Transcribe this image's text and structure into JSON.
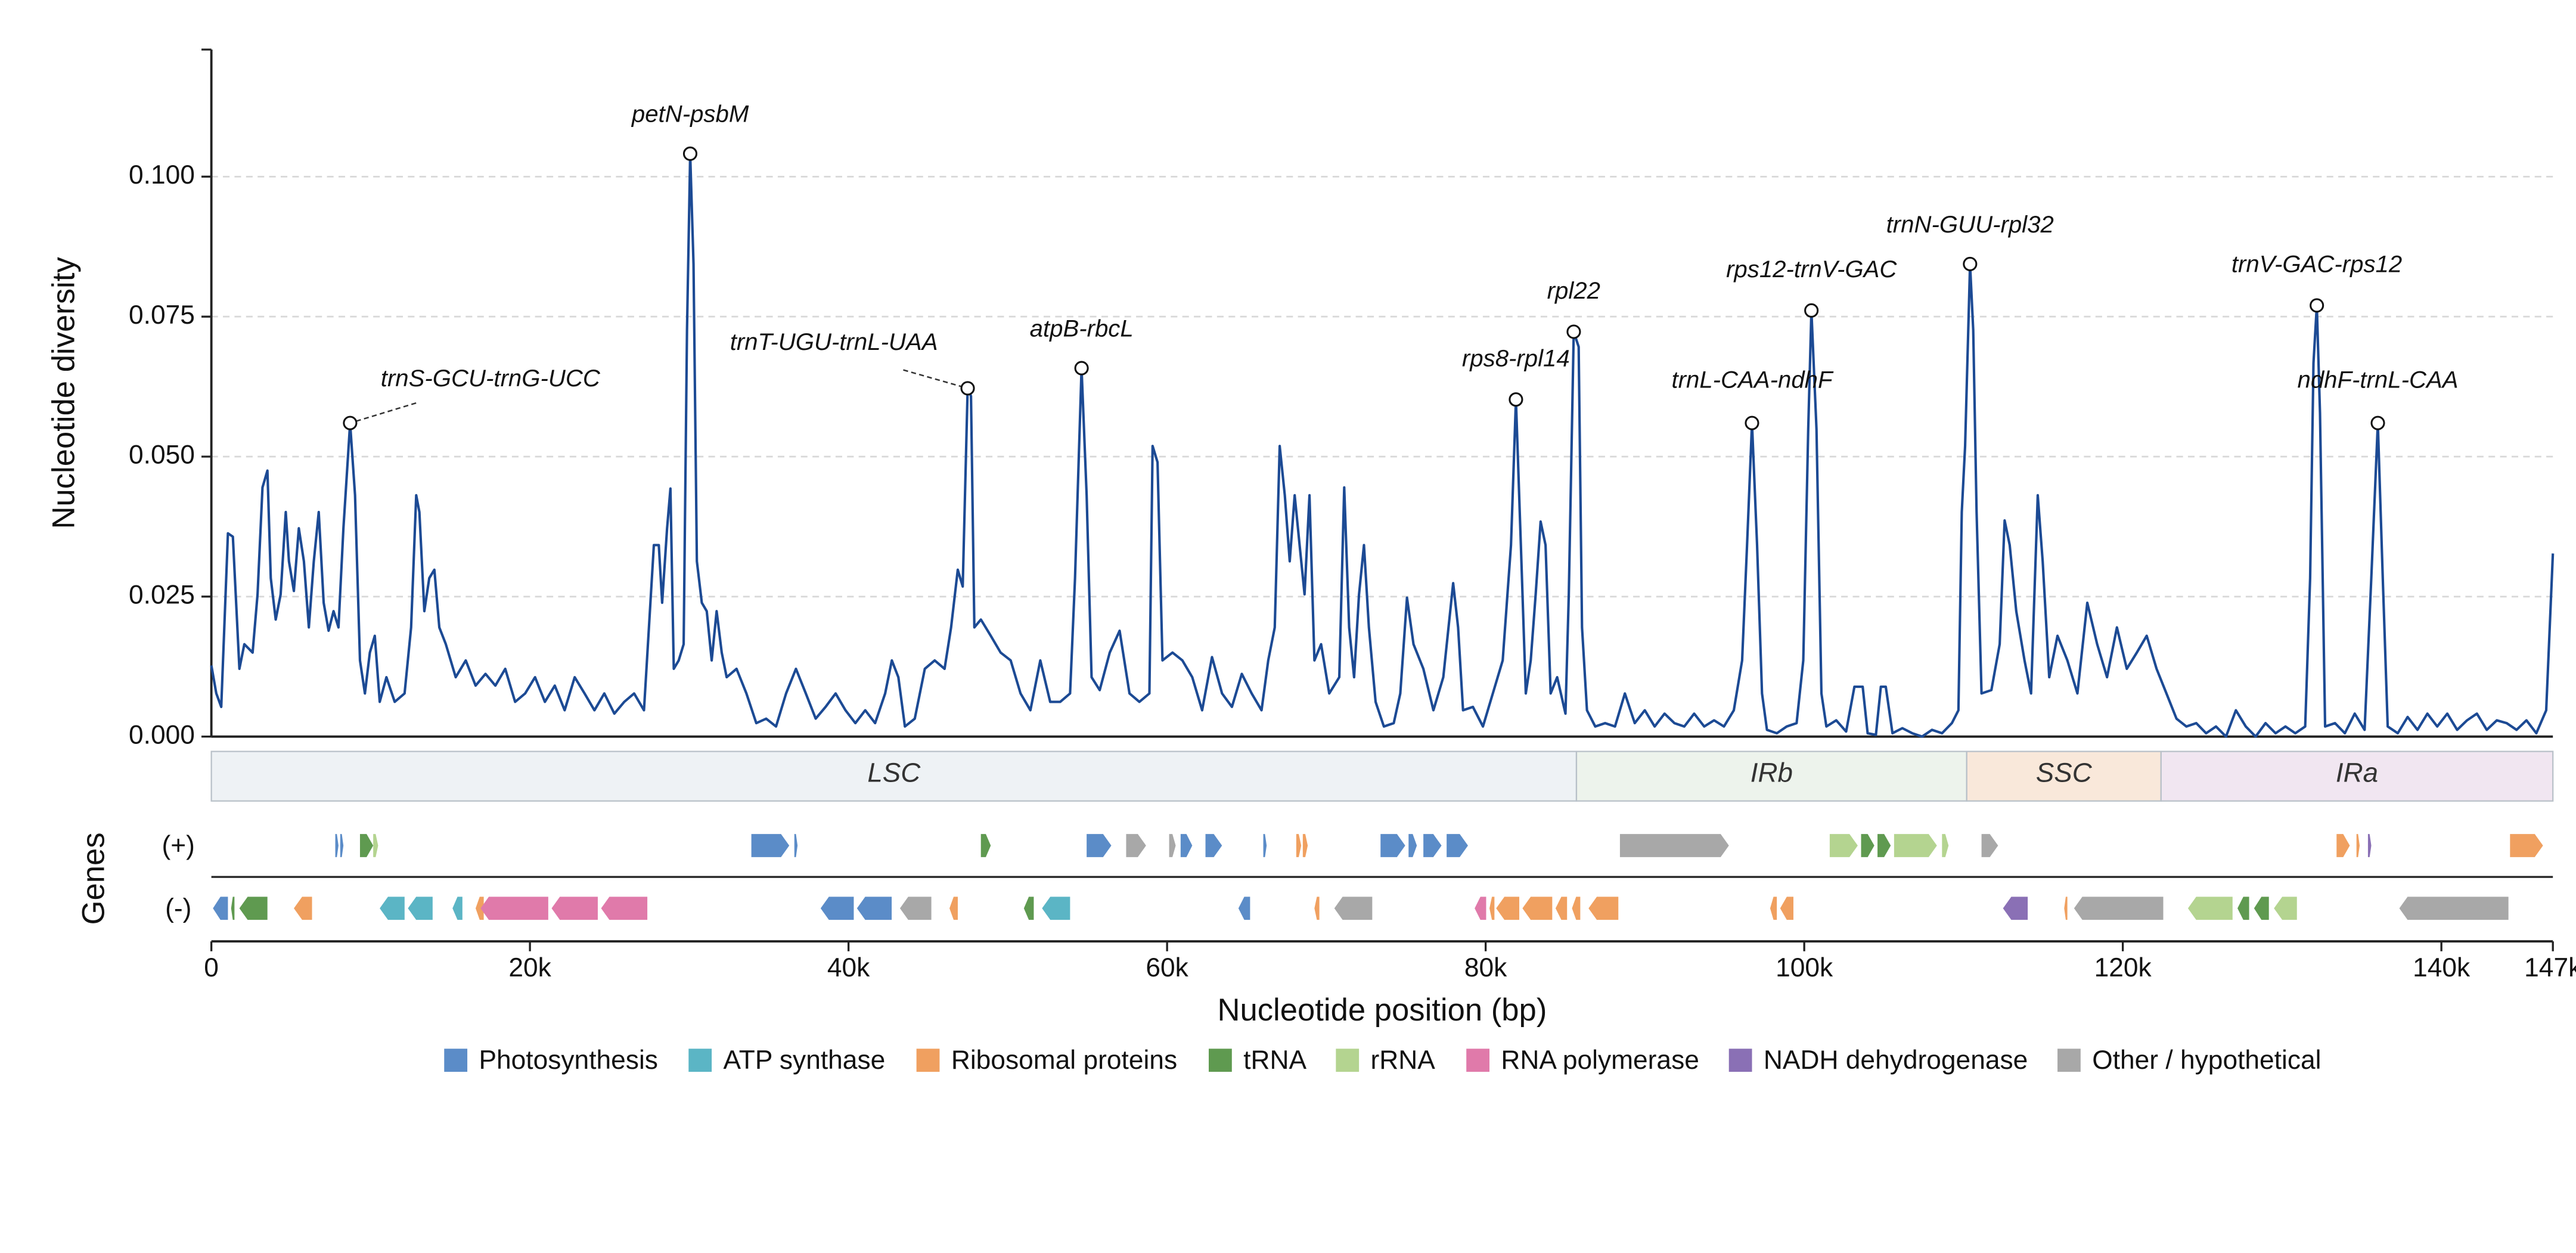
{
  "chart_data": {
    "type": "line",
    "xlabel": "Nucleotide position (bp)",
    "ylabel": "Nucleotide diversity",
    "xlim": [
      0,
      147000
    ],
    "ylim": [
      0,
      0.1227
    ],
    "xticks": [
      0,
      {
        "value": 20000,
        "label": "20k"
      },
      {
        "value": 40000,
        "label": "40k"
      },
      {
        "value": 60000,
        "label": "60k"
      },
      {
        "value": 80000,
        "label": "80k"
      },
      {
        "value": 100000,
        "label": "100k"
      },
      {
        "value": 120000,
        "label": "120k"
      },
      {
        "value": 140000,
        "label": "140k"
      },
      {
        "value": 147000,
        "label": "147k"
      }
    ],
    "yticks": [
      {
        "value": 0,
        "label": "0.000"
      },
      {
        "value": 0.025,
        "label": "0.025"
      },
      {
        "value": 0.05,
        "label": "0.050"
      },
      {
        "value": 0.075,
        "label": "0.075"
      },
      {
        "value": 0.1,
        "label": "0.100"
      }
    ],
    "grid": true,
    "series": [
      {
        "color": "#1c4a94",
        "x": [
          0,
          310,
          620,
          1040,
          1350,
          1760,
          2070,
          2590,
          2900,
          3210,
          3520,
          3730,
          4040,
          4350,
          4670,
          4870,
          5180,
          5490,
          5810,
          6120,
          6430,
          6740,
          7050,
          7360,
          7670,
          7980,
          8290,
          8710,
          9020,
          9330,
          9640,
          9950,
          10260,
          10570,
          10990,
          11510,
          12130,
          12540,
          12860,
          13060,
          13370,
          13680,
          14000,
          14310,
          14720,
          15340,
          15970,
          16590,
          17210,
          17830,
          18450,
          19070,
          19700,
          20320,
          20940,
          21560,
          22180,
          22810,
          23430,
          24050,
          24670,
          25300,
          25920,
          26540,
          27160,
          27780,
          28090,
          28300,
          28610,
          28820,
          29030,
          29340,
          29650,
          29860,
          30060,
          30270,
          30480,
          30790,
          31100,
          31410,
          31720,
          32040,
          32350,
          32970,
          33590,
          34210,
          34830,
          35450,
          36080,
          36700,
          37320,
          37940,
          38560,
          39190,
          39810,
          40430,
          41050,
          41670,
          42300,
          42720,
          43130,
          43540,
          44160,
          44790,
          45410,
          46030,
          46440,
          46860,
          47170,
          47480,
          47690,
          47900,
          48310,
          48930,
          49550,
          50180,
          50800,
          51420,
          52040,
          52660,
          53290,
          53910,
          54220,
          54630,
          54950,
          55260,
          55770,
          56400,
          57020,
          57640,
          58260,
          58890,
          59090,
          59400,
          59710,
          60340,
          60960,
          61580,
          62200,
          62820,
          63450,
          64070,
          64690,
          65310,
          65930,
          66350,
          66760,
          67070,
          67390,
          67700,
          68010,
          68320,
          68630,
          68940,
          69250,
          69670,
          70180,
          70810,
          71120,
          71430,
          71740,
          72050,
          72360,
          72670,
          73090,
          73610,
          74230,
          74640,
          75060,
          75470,
          76090,
          76720,
          77340,
          77960,
          78270,
          78580,
          79200,
          79830,
          80450,
          81070,
          81590,
          81900,
          82210,
          82520,
          82830,
          83140,
          83450,
          83760,
          84080,
          84490,
          85010,
          85220,
          85530,
          85840,
          86050,
          86360,
          86880,
          87500,
          88120,
          88740,
          89360,
          89990,
          90610,
          91230,
          91850,
          92470,
          93090,
          93720,
          94340,
          94960,
          95580,
          96100,
          96410,
          96720,
          97040,
          97350,
          97660,
          98280,
          98900,
          99520,
          99940,
          100250,
          100450,
          100770,
          101080,
          101390,
          102010,
          102630,
          103150,
          103670,
          103980,
          104500,
          104810,
          105120,
          105540,
          106160,
          106780,
          107400,
          108020,
          108650,
          109270,
          109680,
          109890,
          110100,
          110410,
          110610,
          110820,
          111130,
          111750,
          112270,
          112580,
          112900,
          113310,
          113830,
          114240,
          114660,
          114970,
          115380,
          115900,
          116520,
          117150,
          117770,
          118390,
          119010,
          119630,
          120250,
          120880,
          121500,
          122120,
          122740,
          123370,
          123990,
          124610,
          125230,
          125850,
          126480,
          127100,
          127720,
          128340,
          128960,
          129590,
          130210,
          130830,
          131450,
          131760,
          131970,
          132180,
          132380,
          132700,
          133320,
          133940,
          134560,
          135180,
          135600,
          136010,
          136320,
          136630,
          137260,
          137880,
          138500,
          139120,
          139740,
          140370,
          140990,
          141610,
          142230,
          142850,
          143480,
          144100,
          144720,
          145340,
          145960,
          146580,
          147000
        ],
        "values": [
          0.0127,
          0.0077,
          0.0053,
          0.0363,
          0.0357,
          0.0121,
          0.0165,
          0.015,
          0.0254,
          0.0445,
          0.0475,
          0.0283,
          0.0209,
          0.0254,
          0.0401,
          0.0313,
          0.026,
          0.0372,
          0.0313,
          0.0195,
          0.0313,
          0.0401,
          0.0239,
          0.0189,
          0.0224,
          0.0195,
          0.0372,
          0.056,
          0.0431,
          0.0136,
          0.0077,
          0.015,
          0.018,
          0.0062,
          0.0106,
          0.0062,
          0.0077,
          0.0195,
          0.0431,
          0.0401,
          0.0224,
          0.0283,
          0.0298,
          0.0195,
          0.0165,
          0.0106,
          0.0136,
          0.0091,
          0.0112,
          0.0091,
          0.0121,
          0.0062,
          0.0077,
          0.0106,
          0.0062,
          0.0091,
          0.0047,
          0.0106,
          0.0077,
          0.0047,
          0.0077,
          0.0041,
          0.0062,
          0.0077,
          0.0047,
          0.0342,
          0.0342,
          0.0239,
          0.0372,
          0.0443,
          0.0121,
          0.0136,
          0.0165,
          0.0726,
          0.1041,
          0.0844,
          0.0313,
          0.0239,
          0.0224,
          0.0136,
          0.0224,
          0.015,
          0.0106,
          0.0121,
          0.0077,
          0.0024,
          0.0032,
          0.0018,
          0.0077,
          0.0121,
          0.0077,
          0.0032,
          0.0053,
          0.0077,
          0.0047,
          0.0024,
          0.0047,
          0.0024,
          0.0077,
          0.0136,
          0.0106,
          0.0018,
          0.0032,
          0.0121,
          0.0136,
          0.0121,
          0.0195,
          0.0298,
          0.0268,
          0.0622,
          0.0608,
          0.0195,
          0.0209,
          0.018,
          0.015,
          0.0136,
          0.0077,
          0.0047,
          0.0136,
          0.0062,
          0.0062,
          0.0077,
          0.0283,
          0.0658,
          0.0431,
          0.0106,
          0.0083,
          0.015,
          0.0189,
          0.0077,
          0.0062,
          0.0077,
          0.0519,
          0.049,
          0.0136,
          0.015,
          0.0136,
          0.0106,
          0.0047,
          0.0142,
          0.0077,
          0.0053,
          0.0112,
          0.0077,
          0.0047,
          0.0136,
          0.0195,
          0.0519,
          0.0431,
          0.0313,
          0.0431,
          0.0342,
          0.0254,
          0.0431,
          0.0136,
          0.0165,
          0.0077,
          0.0106,
          0.0445,
          0.0195,
          0.0106,
          0.0254,
          0.0342,
          0.0195,
          0.0062,
          0.0018,
          0.0024,
          0.0077,
          0.0248,
          0.0165,
          0.0121,
          0.0047,
          0.0106,
          0.0274,
          0.0195,
          0.0047,
          0.0053,
          0.0018,
          0.0077,
          0.0136,
          0.0342,
          0.0602,
          0.0342,
          0.0077,
          0.0136,
          0.0254,
          0.0384,
          0.0342,
          0.0077,
          0.0106,
          0.0041,
          0.0254,
          0.0723,
          0.0696,
          0.0195,
          0.0047,
          0.0018,
          0.0024,
          0.0018,
          0.0077,
          0.0024,
          0.0047,
          0.0018,
          0.0041,
          0.0024,
          0.0018,
          0.0041,
          0.0018,
          0.0029,
          0.0018,
          0.0047,
          0.0136,
          0.0342,
          0.056,
          0.0342,
          0.0077,
          0.0012,
          0.0006,
          0.0018,
          0.0024,
          0.0136,
          0.0549,
          0.0761,
          0.0549,
          0.0077,
          0.0018,
          0.0029,
          0.0009,
          0.0089,
          0.0089,
          0.0006,
          0.0003,
          0.0089,
          0.0089,
          0.0006,
          0.0015,
          0.0006,
          0,
          0.0012,
          0.0006,
          0.0024,
          0.0047,
          0.0401,
          0.0519,
          0.0844,
          0.0726,
          0.0401,
          0.0077,
          0.0083,
          0.0165,
          0.0386,
          0.0342,
          0.0224,
          0.0136,
          0.0077,
          0.0431,
          0.0313,
          0.0106,
          0.018,
          0.0136,
          0.0077,
          0.0239,
          0.0165,
          0.0106,
          0.0195,
          0.0121,
          0.015,
          0.018,
          0.0121,
          0.0077,
          0.0032,
          0.0018,
          0.0024,
          0.0006,
          0.0018,
          0,
          0.0047,
          0.0018,
          0,
          0.0024,
          0.0006,
          0.0018,
          0.0006,
          0.0018,
          0.0283,
          0.0667,
          0.077,
          0.0578,
          0.0018,
          0.0024,
          0.0006,
          0.0041,
          0.0012,
          0.0283,
          0.056,
          0.0283,
          0.0018,
          0.0006,
          0.0035,
          0.0012,
          0.0041,
          0.0018,
          0.0041,
          0.0012,
          0.0029,
          0.0041,
          0.0012,
          0.0029,
          0.0024,
          0.0012,
          0.0029,
          0.0006,
          0.0047,
          0.0327
        ]
      }
    ],
    "annotations": [
      {
        "text": "trnS-GCU-trnG-UCC",
        "x": 8710,
        "y": 0.056
      },
      {
        "text": "petN-psbM",
        "x": 30060,
        "y": 0.1041
      },
      {
        "text": "trnT-UGU-trnL-UAA",
        "x": 47480,
        "y": 0.0622
      },
      {
        "text": "atpB-rbcL",
        "x": 54630,
        "y": 0.0658
      },
      {
        "text": "rps8-rpl14",
        "x": 81900,
        "y": 0.0602
      },
      {
        "text": "rpl22",
        "x": 85530,
        "y": 0.0723
      },
      {
        "text": "trnL-CAA-ndhF",
        "x": 96720,
        "y": 0.056
      },
      {
        "text": "rps12-trnV-GAC",
        "x": 100450,
        "y": 0.0761
      },
      {
        "text": "trnN-GUU-rpl32",
        "x": 110410,
        "y": 0.0844
      },
      {
        "text": "trnV-GAC-rps12",
        "x": 132180,
        "y": 0.077
      },
      {
        "text": "ndhF-trnL-CAA",
        "x": 136010,
        "y": 0.056
      }
    ],
    "regions": [
      {
        "name": "LSC",
        "start": 0,
        "end": 85700,
        "color": "#eef2f5"
      },
      {
        "name": "IRb",
        "start": 85700,
        "end": 110200,
        "color": "#edf3ec"
      },
      {
        "name": "SSC",
        "start": 110200,
        "end": 122400,
        "color": "#f9e8da"
      },
      {
        "name": "IRa",
        "start": 122400,
        "end": 147000,
        "color": "#f1e6f1"
      }
    ],
    "gene_track_title": "Genes",
    "gene_track_labels": {
      "plus": "(+)",
      "minus": "(-)"
    },
    "gene_categories": [
      {
        "name": "Photosynthesis",
        "color": "#5b8cc8",
        "plus": [
          [
            7780,
            7980
          ],
          [
            8090,
            8290
          ],
          [
            33900,
            36280
          ],
          [
            36600,
            36800
          ],
          [
            54950,
            56500
          ],
          [
            60850,
            61580
          ],
          [
            62410,
            63450
          ],
          [
            66040,
            66250
          ],
          [
            73400,
            74950
          ],
          [
            75160,
            75680
          ],
          [
            76090,
            77230
          ],
          [
            77550,
            78890
          ]
        ],
        "minus": [
          [
            100,
            1040
          ],
          [
            38250,
            40330
          ],
          [
            40530,
            42710
          ],
          [
            64480,
            65210
          ]
        ]
      },
      {
        "name": "ATP synthase",
        "color": "#5bb5c5",
        "plus": [],
        "minus": [
          [
            10570,
            12130
          ],
          [
            12340,
            13890
          ],
          [
            15140,
            15760
          ],
          [
            52150,
            53910
          ]
        ]
      },
      {
        "name": "Ribosomal proteins",
        "color": "#f0a060",
        "plus": [
          [
            68110,
            68420
          ],
          [
            68520,
            68830
          ],
          [
            133420,
            134250
          ],
          [
            134670,
            134870
          ],
          [
            144310,
            146380
          ]
        ],
        "minus": [
          [
            5180,
            6320
          ],
          [
            16590,
            17100
          ],
          [
            46340,
            46860
          ],
          [
            69250,
            69560
          ],
          [
            80240,
            80550
          ],
          [
            80660,
            82110
          ],
          [
            82310,
            84180
          ],
          [
            84390,
            85110
          ],
          [
            85420,
            85940
          ],
          [
            86460,
            88330
          ],
          [
            97860,
            98280
          ],
          [
            98490,
            99320
          ],
          [
            116320,
            116520
          ]
        ]
      },
      {
        "name": "tRNA",
        "color": "#5f9a50",
        "plus": [
          [
            9330,
            10160
          ],
          [
            48310,
            48930
          ],
          [
            103570,
            104400
          ],
          [
            104600,
            105430
          ]
        ],
        "minus": [
          [
            1240,
            1450
          ],
          [
            1760,
            3520
          ],
          [
            51010,
            51630
          ],
          [
            127200,
            127930
          ],
          [
            128240,
            129170
          ]
        ]
      },
      {
        "name": "rRNA",
        "color": "#b4d490",
        "plus": [
          [
            10160,
            10470
          ],
          [
            101600,
            103360
          ],
          [
            105640,
            108330
          ],
          [
            108650,
            109060
          ]
        ],
        "minus": [
          [
            124090,
            126890
          ],
          [
            129490,
            130930
          ]
        ]
      },
      {
        "name": "RNA polymerase",
        "color": "#e07aaa",
        "plus": [],
        "minus": [
          [
            16900,
            21150
          ],
          [
            21360,
            24260
          ],
          [
            24470,
            27370
          ],
          [
            79310,
            80030
          ]
        ]
      },
      {
        "name": "NADH dehydrogenase",
        "color": "#8a70b5",
        "plus": [
          [
            135390,
            135600
          ]
        ],
        "minus": [
          [
            112480,
            114030
          ]
        ]
      },
      {
        "name": "Other / hypothetical",
        "color": "#a8a8a8",
        "plus": [
          [
            57430,
            58680
          ],
          [
            60130,
            60540
          ],
          [
            88430,
            95270
          ],
          [
            111130,
            112170
          ]
        ],
        "minus": [
          [
            43230,
            45200
          ],
          [
            70500,
            72880
          ],
          [
            116940,
            122540
          ],
          [
            137360,
            144210
          ]
        ]
      }
    ]
  }
}
